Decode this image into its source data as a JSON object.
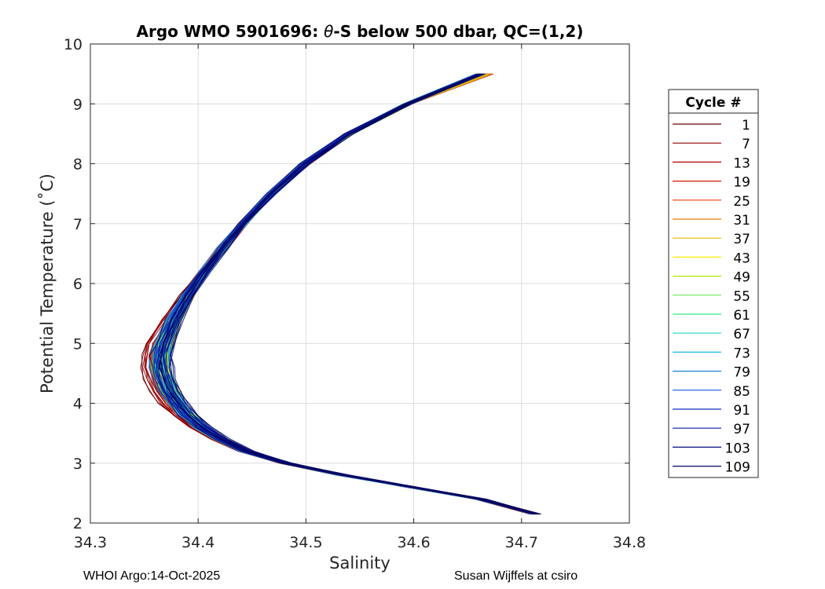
{
  "chart_data": {
    "type": "line",
    "title": "Argo WMO 5901696: θ-S below 500 dbar,  QC=(1,2)",
    "title_prefix": "Argo WMO 5901696: ",
    "title_theta": "θ",
    "title_suffix": "-S below 500 dbar,  QC=(1,2)",
    "xlabel": "Salinity",
    "ylabel": "Potential Temperature (˚C)",
    "xlim": [
      34.3,
      34.8
    ],
    "ylim": [
      2,
      10
    ],
    "xticks": [
      "34.3",
      "34.4",
      "34.5",
      "34.6",
      "34.7",
      "34.8"
    ],
    "yticks": [
      "2",
      "3",
      "4",
      "5",
      "6",
      "7",
      "8",
      "9",
      "10"
    ],
    "grid": true,
    "legend": {
      "title": "Cycle #",
      "placement": "outside-right",
      "entries": [
        "1",
        "7",
        "13",
        "19",
        "25",
        "31",
        "37",
        "43",
        "49",
        "55",
        "61",
        "67",
        "73",
        "79",
        "85",
        "91",
        "97",
        "103",
        "109"
      ],
      "colors": [
        "#6b0000",
        "#8f0000",
        "#b30000",
        "#d41500",
        "#e83f00",
        "#ee7a00",
        "#e6b800",
        "#f2ee00",
        "#aee800",
        "#6ee65a",
        "#35e88a",
        "#1ed8c2",
        "#17b8e8",
        "#1585d8",
        "#1455e0",
        "#1030c0",
        "#0a1aa0",
        "#060e80",
        "#030660"
      ]
    },
    "series_profile": {
      "theta": [
        2.15,
        2.4,
        2.6,
        2.8,
        3.0,
        3.2,
        3.4,
        3.6,
        3.8,
        4.0,
        4.2,
        4.4,
        4.6,
        4.8,
        5.0,
        5.4,
        5.8,
        6.2,
        6.6,
        7.0,
        7.5,
        8.0,
        8.5,
        9.0,
        9.5
      ],
      "salinity": [
        34.713,
        34.662,
        34.598,
        34.535,
        34.482,
        34.445,
        34.422,
        34.404,
        34.391,
        34.381,
        34.374,
        34.369,
        34.366,
        34.366,
        34.369,
        34.378,
        34.391,
        34.406,
        34.423,
        34.442,
        34.468,
        34.499,
        34.54,
        34.595,
        34.665
      ]
    }
  },
  "footer": {
    "left": "WHOI Argo:14-Oct-2025",
    "right": "Susan Wijffels at csiro"
  }
}
